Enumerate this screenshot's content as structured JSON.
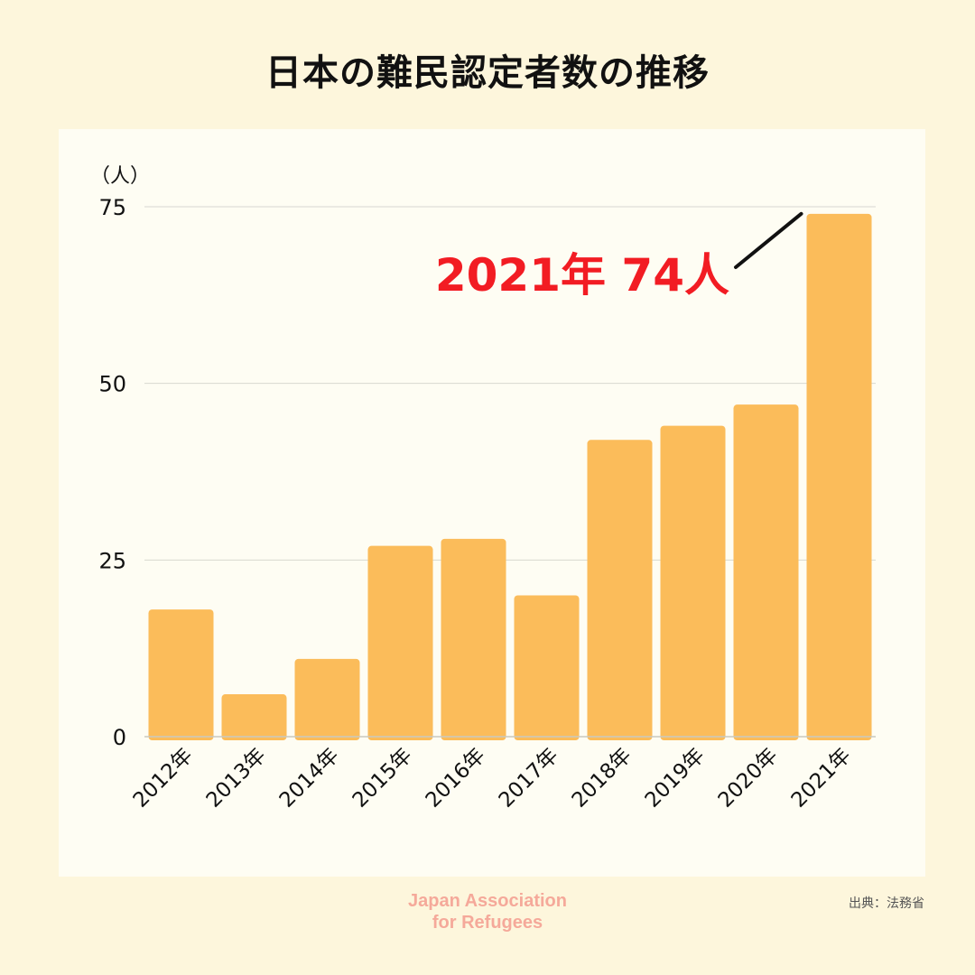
{
  "title": "日本の難民認定者数の推移",
  "chart_data": {
    "type": "bar",
    "title": "日本の難民認定者数の推移",
    "ylabel": "（人）",
    "xlabel": "",
    "categories": [
      "2012年",
      "2013年",
      "2014年",
      "2015年",
      "2016年",
      "2017年",
      "2018年",
      "2019年",
      "2020年",
      "2021年"
    ],
    "values": [
      18,
      6,
      11,
      27,
      28,
      20,
      42,
      44,
      47,
      74
    ],
    "ylim": [
      0,
      75
    ],
    "yticks": [
      "0",
      "25",
      "50",
      "75"
    ],
    "grid": true,
    "bar_color": "#FBBC5A",
    "annotation": {
      "text": "2021年 74人",
      "color": "#F21C23",
      "target": "2021年"
    }
  },
  "logo": {
    "line1": "Japan Association",
    "line2": "for Refugees"
  },
  "source": "出典：法務省",
  "colors": {
    "background": "#FDF6DC",
    "panel": "#FEFDF3",
    "bar": "#FBBC5A",
    "highlight": "#F21C23",
    "logo": "#F5A99A"
  }
}
